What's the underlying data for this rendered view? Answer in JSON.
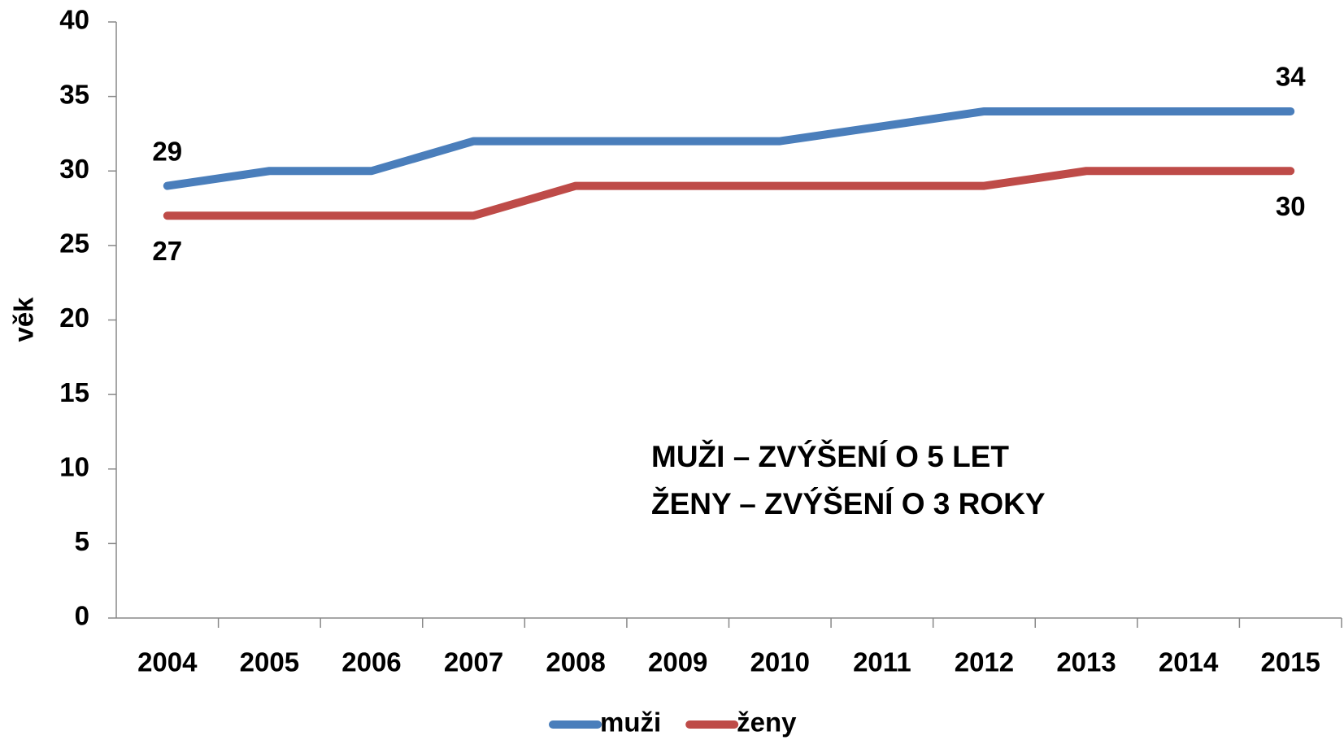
{
  "chart_data": {
    "type": "line",
    "y_label": "věk",
    "categories": [
      "2004",
      "2005",
      "2006",
      "2007",
      "2008",
      "2009",
      "2010",
      "2011",
      "2012",
      "2013",
      "2014",
      "2015"
    ],
    "series": [
      {
        "name": "muži",
        "color": "#4a7ebb",
        "values": [
          29,
          30,
          30,
          32,
          32,
          32,
          32,
          33,
          34,
          34,
          34,
          34
        ],
        "labeled_indices": [
          0,
          11
        ],
        "label_side": "above"
      },
      {
        "name": "ženy",
        "color": "#be4b48",
        "values": [
          27,
          27,
          27,
          27,
          29,
          29,
          29,
          29,
          29,
          30,
          30,
          30
        ],
        "labeled_indices": [
          0,
          11
        ],
        "label_side": "below"
      }
    ],
    "annotations": [
      "MUŽI – ZVÝŠENÍ O 5 LET",
      "ŽENY – ZVÝŠENÍ O 3 ROKY"
    ],
    "ylim": [
      0,
      40
    ],
    "yticks": [
      0,
      5,
      10,
      15,
      20,
      25,
      30,
      35,
      40
    ],
    "grid": false,
    "legend": "bottom"
  }
}
